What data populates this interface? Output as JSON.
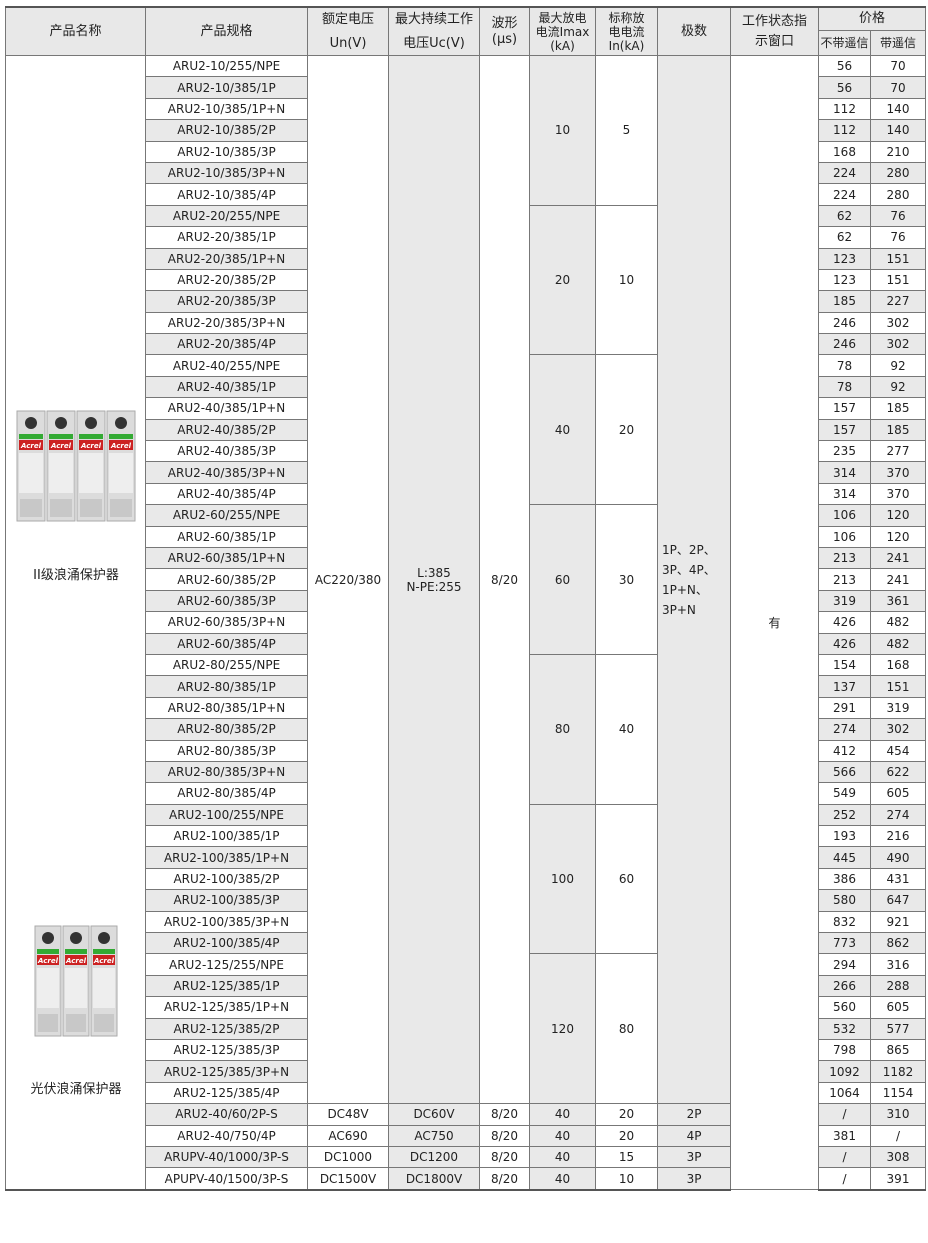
{
  "headers": {
    "name": "产品名称",
    "spec": "产品规格",
    "un": [
      "额定电压",
      "Un(V)"
    ],
    "uc": [
      "最大持续工作",
      "电压Uc(V)"
    ],
    "wave": [
      "波形",
      "(μs)"
    ],
    "imax": [
      "最大放电",
      "电流Imax",
      "(kA)"
    ],
    "in": [
      "标称放",
      "电电流",
      "In(kA)"
    ],
    "poles": "极数",
    "status": [
      "工作状态指",
      "示窗口"
    ],
    "price": "价格",
    "price_no": "不带遥信",
    "price_yes": "带遥信"
  },
  "product_labels": {
    "type2": "II级浪涌保护器",
    "pv": "光伏浪涌保护器"
  },
  "image_brand": "Acrel",
  "common": {
    "un": "AC220/380",
    "uc": [
      "L:385",
      "N-PE:255"
    ],
    "wave": "8/20",
    "poles": [
      "1P、2P、",
      "3P、4P、",
      "1P+N、",
      "3P+N"
    ],
    "status": "有"
  },
  "groups": [
    {
      "imax": "10",
      "in": "5",
      "rows": [
        [
          "ARU2-10/255/NPE",
          "56",
          "70"
        ],
        [
          "ARU2-10/385/1P",
          "56",
          "70"
        ],
        [
          "ARU2-10/385/1P+N",
          "112",
          "140"
        ],
        [
          "ARU2-10/385/2P",
          "112",
          "140"
        ],
        [
          "ARU2-10/385/3P",
          "168",
          "210"
        ],
        [
          "ARU2-10/385/3P+N",
          "224",
          "280"
        ],
        [
          "ARU2-10/385/4P",
          "224",
          "280"
        ]
      ]
    },
    {
      "imax": "20",
      "in": "10",
      "rows": [
        [
          "ARU2-20/255/NPE",
          "62",
          "76"
        ],
        [
          "ARU2-20/385/1P",
          "62",
          "76"
        ],
        [
          "ARU2-20/385/1P+N",
          "123",
          "151"
        ],
        [
          "ARU2-20/385/2P",
          "123",
          "151"
        ],
        [
          "ARU2-20/385/3P",
          "185",
          "227"
        ],
        [
          "ARU2-20/385/3P+N",
          "246",
          "302"
        ],
        [
          "ARU2-20/385/4P",
          "246",
          "302"
        ]
      ]
    },
    {
      "imax": "40",
      "in": "20",
      "rows": [
        [
          "ARU2-40/255/NPE",
          "78",
          "92"
        ],
        [
          "ARU2-40/385/1P",
          "78",
          "92"
        ],
        [
          "ARU2-40/385/1P+N",
          "157",
          "185"
        ],
        [
          "ARU2-40/385/2P",
          "157",
          "185"
        ],
        [
          "ARU2-40/385/3P",
          "235",
          "277"
        ],
        [
          "ARU2-40/385/3P+N",
          "314",
          "370"
        ],
        [
          "ARU2-40/385/4P",
          "314",
          "370"
        ]
      ]
    },
    {
      "imax": "60",
      "in": "30",
      "rows": [
        [
          "ARU2-60/255/NPE",
          "106",
          "120"
        ],
        [
          "ARU2-60/385/1P",
          "106",
          "120"
        ],
        [
          "ARU2-60/385/1P+N",
          "213",
          "241"
        ],
        [
          "ARU2-60/385/2P",
          "213",
          "241"
        ],
        [
          "ARU2-60/385/3P",
          "319",
          "361"
        ],
        [
          "ARU2-60/385/3P+N",
          "426",
          "482"
        ],
        [
          "ARU2-60/385/4P",
          "426",
          "482"
        ]
      ]
    },
    {
      "imax": "80",
      "in": "40",
      "rows": [
        [
          "ARU2-80/255/NPE",
          "154",
          "168"
        ],
        [
          "ARU2-80/385/1P",
          "137",
          "151"
        ],
        [
          "ARU2-80/385/1P+N",
          "291",
          "319"
        ],
        [
          "ARU2-80/385/2P",
          "274",
          "302"
        ],
        [
          "ARU2-80/385/3P",
          "412",
          "454"
        ],
        [
          "ARU2-80/385/3P+N",
          "566",
          "622"
        ],
        [
          "ARU2-80/385/4P",
          "549",
          "605"
        ]
      ]
    },
    {
      "imax": "100",
      "in": "60",
      "rows": [
        [
          "ARU2-100/255/NPE",
          "252",
          "274"
        ],
        [
          "ARU2-100/385/1P",
          "193",
          "216"
        ],
        [
          "ARU2-100/385/1P+N",
          "445",
          "490"
        ],
        [
          "ARU2-100/385/2P",
          "386",
          "431"
        ],
        [
          "ARU2-100/385/3P",
          "580",
          "647"
        ],
        [
          "ARU2-100/385/3P+N",
          "832",
          "921"
        ],
        [
          "ARU2-100/385/4P",
          "773",
          "862"
        ]
      ]
    },
    {
      "imax": "120",
      "in": "80",
      "rows": [
        [
          "ARU2-125/255/NPE",
          "294",
          "316"
        ],
        [
          "ARU2-125/385/1P",
          "266",
          "288"
        ],
        [
          "ARU2-125/385/1P+N",
          "560",
          "605"
        ],
        [
          "ARU2-125/385/2P",
          "532",
          "577"
        ],
        [
          "ARU2-125/385/3P",
          "798",
          "865"
        ],
        [
          "ARU2-125/385/3P+N",
          "1092",
          "1182"
        ],
        [
          "ARU2-125/385/4P",
          "1064",
          "1154"
        ]
      ]
    }
  ],
  "extra_rows": [
    [
      "ARU2-40/60/2P-S",
      "DC48V",
      "DC60V",
      "8/20",
      "40",
      "20",
      "2P",
      "/",
      "310"
    ],
    [
      "ARU2-40/750/4P",
      "AC690",
      "AC750",
      "8/20",
      "40",
      "20",
      "4P",
      "381",
      "/"
    ],
    [
      "ARUPV-40/1000/3P-S",
      "DC1000",
      "DC1200",
      "8/20",
      "40",
      "15",
      "3P",
      "/",
      "308"
    ],
    [
      "APUPV-40/1500/3P-S",
      "DC1500V",
      "DC1800V",
      "8/20",
      "40",
      "10",
      "3P",
      "/",
      "391"
    ]
  ]
}
